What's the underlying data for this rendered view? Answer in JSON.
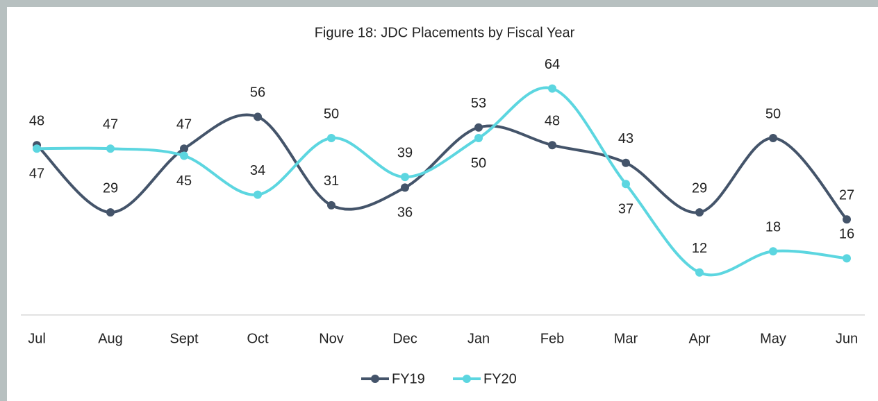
{
  "chart_data": {
    "type": "line",
    "title": "Figure 18: JDC Placements by Fiscal Year",
    "categories": [
      "Jul",
      "Aug",
      "Sept",
      "Oct",
      "Nov",
      "Dec",
      "Jan",
      "Feb",
      "Mar",
      "Apr",
      "May",
      "Jun"
    ],
    "series": [
      {
        "name": "FY19",
        "color": "#44546a",
        "values": [
          48,
          29,
          47,
          56,
          31,
          36,
          53,
          48,
          43,
          29,
          50,
          27
        ]
      },
      {
        "name": "FY20",
        "color": "#5cd6e0",
        "values": [
          47,
          47,
          45,
          34,
          50,
          39,
          50,
          64,
          37,
          12,
          18,
          16
        ]
      }
    ],
    "ylim": [
      0,
      70
    ],
    "legend": "bottom",
    "smooth": true
  }
}
